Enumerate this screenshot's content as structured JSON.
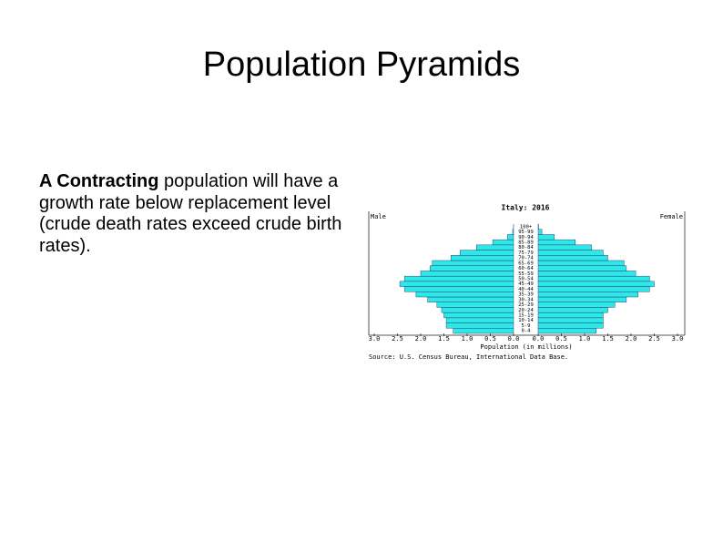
{
  "slide": {
    "title": "Population Pyramids",
    "body": {
      "bold": "A Contracting",
      "text": " population will have a growth rate below replacement level (crude death rates exceed crude birth rates)."
    }
  },
  "chart_data": {
    "type": "pyramid",
    "title": "Italy: 2016",
    "x_label": "Population (in millions)",
    "source": "Source: U.S. Census Bureau, International Data Base.",
    "categories": [
      "0-4",
      "5-9",
      "10-14",
      "15-19",
      "20-24",
      "25-29",
      "30-34",
      "35-39",
      "40-44",
      "45-49",
      "50-54",
      "55-59",
      "60-64",
      "65-69",
      "70-74",
      "75-79",
      "80-84",
      "85-89",
      "90-94",
      "95-99",
      "100+"
    ],
    "series": [
      {
        "name": "Male",
        "color": "#2ee8e8",
        "values": [
          1.3,
          1.45,
          1.45,
          1.5,
          1.55,
          1.65,
          1.85,
          2.1,
          2.35,
          2.45,
          2.35,
          2.0,
          1.8,
          1.75,
          1.35,
          1.15,
          0.8,
          0.45,
          0.13,
          0.02,
          0.002
        ]
      },
      {
        "name": "Female",
        "color": "#2ee8e8",
        "values": [
          1.25,
          1.4,
          1.4,
          1.4,
          1.5,
          1.65,
          1.9,
          2.15,
          2.4,
          2.5,
          2.4,
          2.1,
          1.9,
          1.85,
          1.5,
          1.4,
          1.15,
          0.8,
          0.35,
          0.08,
          0.01
        ]
      }
    ],
    "xlim": [
      0,
      3
    ],
    "xticks": [
      {
        "value": 0,
        "label": "0.0"
      },
      {
        "value": 0.5,
        "label": "0.5"
      },
      {
        "value": 1,
        "label": "1.0"
      },
      {
        "value": 1.5,
        "label": "1.5"
      },
      {
        "value": 2,
        "label": "2.0"
      },
      {
        "value": 2.5,
        "label": "2.5"
      },
      {
        "value": 3,
        "label": "3.0"
      }
    ]
  }
}
